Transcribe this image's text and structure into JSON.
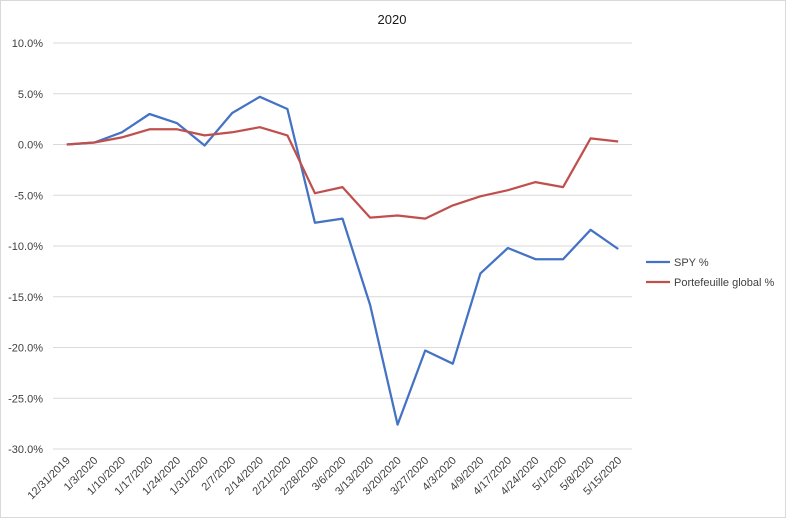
{
  "chart_data": {
    "type": "line",
    "title": "2020",
    "xlabel": "",
    "ylabel": "",
    "ylim": [
      -30,
      10
    ],
    "yticks": [
      10,
      5,
      0,
      -5,
      -10,
      -15,
      -20,
      -25,
      -30
    ],
    "ytick_labels": [
      "10.0%",
      "5.0%",
      "0.0%",
      "-5.0%",
      "-10.0%",
      "-15.0%",
      "-20.0%",
      "-25.0%",
      "-30.0%"
    ],
    "grid": true,
    "legend_position": "right",
    "categories": [
      "12/31/2019",
      "1/3/2020",
      "1/10/2020",
      "1/17/2020",
      "1/24/2020",
      "1/31/2020",
      "2/7/2020",
      "2/14/2020",
      "2/21/2020",
      "2/28/2020",
      "3/6/2020",
      "3/13/2020",
      "3/20/2020",
      "3/27/2020",
      "4/3/2020",
      "4/9/2020",
      "4/17/2020",
      "4/24/2020",
      "5/1/2020",
      "5/8/2020",
      "5/15/2020"
    ],
    "series": [
      {
        "name": "SPY %",
        "color": "#4472c4",
        "values": [
          0.0,
          0.2,
          1.2,
          3.0,
          2.1,
          -0.1,
          3.1,
          4.7,
          3.5,
          -7.7,
          -7.3,
          -15.8,
          -27.6,
          -20.3,
          -21.6,
          -12.7,
          -10.2,
          -11.3,
          -11.3,
          -8.4,
          -10.3
        ]
      },
      {
        "name": "Portefeuille global %",
        "color": "#c0504d",
        "values": [
          0.0,
          0.2,
          0.7,
          1.5,
          1.5,
          0.9,
          1.2,
          1.7,
          0.9,
          -4.8,
          -4.2,
          -7.2,
          -7.0,
          -7.3,
          -6.0,
          -5.1,
          -4.5,
          -3.7,
          -4.2,
          0.6,
          0.3
        ]
      }
    ]
  }
}
